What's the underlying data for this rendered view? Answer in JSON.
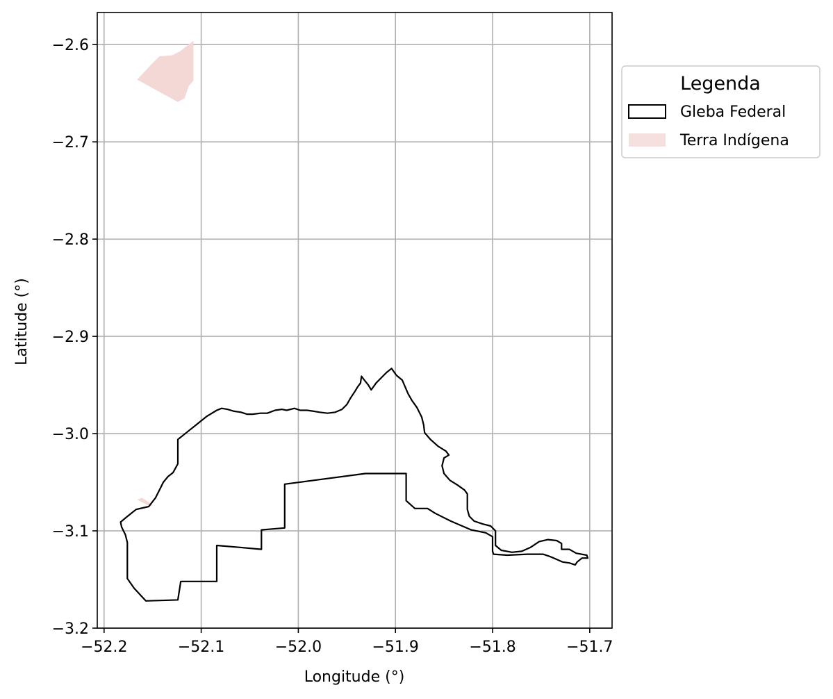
{
  "chart_data": {
    "type": "map",
    "xlabel": "Longitude (°)",
    "ylabel": "Latitude (°)",
    "xlim": [
      -52.207,
      -51.677
    ],
    "ylim": [
      -3.2,
      -2.567
    ],
    "xticks": [
      -52.2,
      -52.1,
      -52.0,
      -51.9,
      -51.8,
      -51.7
    ],
    "xtick_labels": [
      "−52.2",
      "−52.1",
      "−52.0",
      "−51.9",
      "−51.8",
      "−51.7"
    ],
    "yticks": [
      -2.6,
      -2.7,
      -2.8,
      -2.9,
      -3.0,
      -3.1,
      -3.2
    ],
    "ytick_labels": [
      "−2.6",
      "−2.7",
      "−2.8",
      "−2.9",
      "−3.0",
      "−3.1",
      "−3.2"
    ],
    "grid": true,
    "legend": {
      "title": "Legenda",
      "placement": "outside upper right",
      "entries": [
        {
          "label": "Gleba Federal",
          "style": "outline",
          "color": "#000000"
        },
        {
          "label": "Terra Indígena",
          "style": "fill",
          "color": "#f2d6d4"
        }
      ]
    },
    "layers": [
      {
        "name": "Gleba Federal",
        "kind": "outline",
        "color": "#000000",
        "coordinates": [
          [
            -51.904,
            -2.933
          ],
          [
            -51.899,
            -2.94
          ],
          [
            -51.893,
            -2.945
          ],
          [
            -51.89,
            -2.952
          ],
          [
            -51.887,
            -2.959
          ],
          [
            -51.883,
            -2.966
          ],
          [
            -51.878,
            -2.973
          ],
          [
            -51.873,
            -2.983
          ],
          [
            -51.871,
            -2.991
          ],
          [
            -51.87,
            -2.999
          ],
          [
            -51.864,
            -3.006
          ],
          [
            -51.856,
            -3.013
          ],
          [
            -51.848,
            -3.018
          ],
          [
            -51.845,
            -3.022
          ],
          [
            -51.85,
            -3.025
          ],
          [
            -51.852,
            -3.033
          ],
          [
            -51.85,
            -3.041
          ],
          [
            -51.844,
            -3.048
          ],
          [
            -51.836,
            -3.053
          ],
          [
            -51.829,
            -3.058
          ],
          [
            -51.826,
            -3.062
          ],
          [
            -51.826,
            -3.078
          ],
          [
            -51.824,
            -3.085
          ],
          [
            -51.819,
            -3.09
          ],
          [
            -51.81,
            -3.093
          ],
          [
            -51.802,
            -3.095
          ],
          [
            -51.797,
            -3.1
          ],
          [
            -51.797,
            -3.115
          ],
          [
            -51.791,
            -3.12
          ],
          [
            -51.78,
            -3.122
          ],
          [
            -51.77,
            -3.121
          ],
          [
            -51.761,
            -3.117
          ],
          [
            -51.752,
            -3.111
          ],
          [
            -51.743,
            -3.109
          ],
          [
            -51.734,
            -3.11
          ],
          [
            -51.729,
            -3.113
          ],
          [
            -51.729,
            -3.119
          ],
          [
            -51.721,
            -3.119
          ],
          [
            -51.714,
            -3.123
          ],
          [
            -51.703,
            -3.125
          ],
          [
            -51.702,
            -3.128
          ],
          [
            -51.708,
            -3.128
          ],
          [
            -51.713,
            -3.132
          ],
          [
            -51.715,
            -3.135
          ],
          [
            -51.721,
            -3.133
          ],
          [
            -51.728,
            -3.132
          ],
          [
            -51.737,
            -3.128
          ],
          [
            -51.742,
            -3.126
          ],
          [
            -51.748,
            -3.124
          ],
          [
            -51.764,
            -3.124
          ],
          [
            -51.785,
            -3.125
          ],
          [
            -51.799,
            -3.124
          ],
          [
            -51.8,
            -3.121
          ],
          [
            -51.8,
            -3.106
          ],
          [
            -51.807,
            -3.102
          ],
          [
            -51.822,
            -3.099
          ],
          [
            -51.843,
            -3.09
          ],
          [
            -51.859,
            -3.082
          ],
          [
            -51.867,
            -3.077
          ],
          [
            -51.88,
            -3.077
          ],
          [
            -51.889,
            -3.069
          ],
          [
            -51.889,
            -3.041
          ],
          [
            -51.931,
            -3.041
          ],
          [
            -52.014,
            -3.052
          ],
          [
            -52.014,
            -3.097
          ],
          [
            -52.038,
            -3.099
          ],
          [
            -52.038,
            -3.119
          ],
          [
            -52.06,
            -3.117
          ],
          [
            -52.084,
            -3.115
          ],
          [
            -52.084,
            -3.152
          ],
          [
            -52.121,
            -3.152
          ],
          [
            -52.124,
            -3.171
          ],
          [
            -52.157,
            -3.172
          ],
          [
            -52.169,
            -3.159
          ],
          [
            -52.176,
            -3.149
          ],
          [
            -52.176,
            -3.133
          ],
          [
            -52.176,
            -3.112
          ],
          [
            -52.178,
            -3.104
          ],
          [
            -52.182,
            -3.096
          ],
          [
            -52.183,
            -3.091
          ],
          [
            -52.177,
            -3.086
          ],
          [
            -52.167,
            -3.078
          ],
          [
            -52.154,
            -3.075
          ],
          [
            -52.147,
            -3.066
          ],
          [
            -52.143,
            -3.058
          ],
          [
            -52.139,
            -3.05
          ],
          [
            -52.134,
            -3.044
          ],
          [
            -52.129,
            -3.04
          ],
          [
            -52.124,
            -3.031
          ],
          [
            -52.124,
            -3.006
          ],
          [
            -52.114,
            -2.998
          ],
          [
            -52.104,
            -2.99
          ],
          [
            -52.094,
            -2.982
          ],
          [
            -52.084,
            -2.976
          ],
          [
            -52.079,
            -2.974
          ],
          [
            -52.073,
            -2.975
          ],
          [
            -52.066,
            -2.977
          ],
          [
            -52.059,
            -2.978
          ],
          [
            -52.053,
            -2.98
          ],
          [
            -52.047,
            -2.98
          ],
          [
            -52.039,
            -2.979
          ],
          [
            -52.032,
            -2.979
          ],
          [
            -52.024,
            -2.976
          ],
          [
            -52.017,
            -2.975
          ],
          [
            -52.012,
            -2.976
          ],
          [
            -52.004,
            -2.974
          ],
          [
            -51.998,
            -2.976
          ],
          [
            -51.991,
            -2.976
          ],
          [
            -51.984,
            -2.977
          ],
          [
            -51.978,
            -2.978
          ],
          [
            -51.97,
            -2.979
          ],
          [
            -51.962,
            -2.978
          ],
          [
            -51.955,
            -2.975
          ],
          [
            -51.95,
            -2.97
          ],
          [
            -51.946,
            -2.963
          ],
          [
            -51.942,
            -2.957
          ],
          [
            -51.939,
            -2.952
          ],
          [
            -51.936,
            -2.948
          ],
          [
            -51.935,
            -2.941
          ],
          [
            -51.932,
            -2.945
          ],
          [
            -51.928,
            -2.95
          ],
          [
            -51.925,
            -2.955
          ],
          [
            -51.92,
            -2.948
          ],
          [
            -51.914,
            -2.942
          ],
          [
            -51.909,
            -2.937
          ],
          [
            -51.904,
            -2.933
          ]
        ]
      },
      {
        "name": "Terra Indígena",
        "kind": "fill",
        "color": "#f2d6d4",
        "coordinates": [
          [
            -52.166,
            -2.636
          ],
          [
            -52.152,
            -2.621
          ],
          [
            -52.143,
            -2.612
          ],
          [
            -52.13,
            -2.611
          ],
          [
            -52.122,
            -2.607
          ],
          [
            -52.113,
            -2.6
          ],
          [
            -52.108,
            -2.596
          ],
          [
            -52.108,
            -2.637
          ],
          [
            -52.113,
            -2.643
          ],
          [
            -52.117,
            -2.655
          ],
          [
            -52.124,
            -2.659
          ],
          [
            -52.166,
            -2.636
          ]
        ]
      },
      {
        "name": "Terra Indígena",
        "kind": "fill",
        "color": "#f2d6d4",
        "coordinates": [
          [
            -52.166,
            -3.068
          ],
          [
            -52.161,
            -3.066
          ],
          [
            -52.15,
            -3.073
          ],
          [
            -52.152,
            -3.075
          ],
          [
            -52.166,
            -3.068
          ]
        ]
      }
    ]
  }
}
